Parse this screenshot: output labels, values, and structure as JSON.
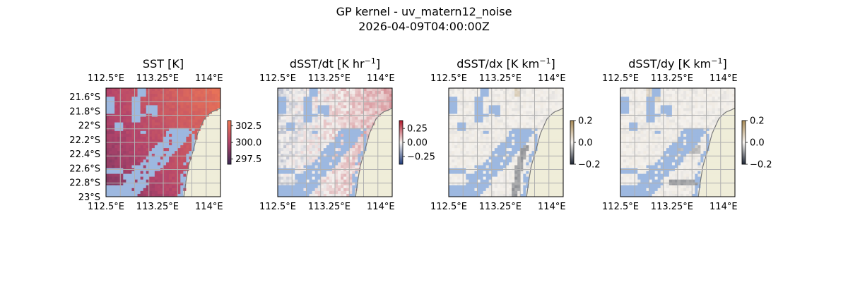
{
  "figure": {
    "title_line1": "GP kernel - uv_matern12_noise",
    "title_line2": "2026-04-09T04:00:00Z"
  },
  "colors": {
    "land": "#efedd9",
    "mask": "#9db8e0",
    "gridline": "#b0b0b0",
    "coast": "#7a7a7a",
    "sst_low": "#3b2a55",
    "sst_mid": "#b4456b",
    "sst_high": "#f07a55",
    "div_low": "#1f3a7a",
    "div_mid": "#f4f1ee",
    "div_high": "#b2182b",
    "grad_low": "#1c2433",
    "grad_mid": "#f5f2ee",
    "grad_high": "#a88a55"
  },
  "chart_data": [
    {
      "type": "heatmap",
      "title": "SST [K]",
      "title_sup": "",
      "title_after": "",
      "x_tick_labels": [
        "112.5°E",
        "113.25°E",
        "114°E"
      ],
      "y_tick_labels": [
        "21.6°S",
        "21.8°S",
        "22°S",
        "22.2°S",
        "22.4°S",
        "22.6°S",
        "22.8°S",
        "23°S"
      ],
      "show_y_labels": true,
      "colorbar": {
        "ticks": [
          "302.5",
          "300.0",
          "297.5"
        ],
        "range": [
          297.0,
          303.5
        ],
        "colormap": "sst"
      },
      "field": "sst",
      "xlim": [
        112.5,
        114.1
      ],
      "ylim": [
        -23.0,
        -21.5
      ]
    },
    {
      "type": "heatmap",
      "title": "dSST/dt [K hr",
      "title_sup": "−1",
      "title_after": "]",
      "x_tick_labels": [
        "112.5°E",
        "113.25°E",
        "114°E"
      ],
      "y_tick_labels": [],
      "show_y_labels": false,
      "colorbar": {
        "ticks": [
          "0.25",
          "0.00",
          "−0.25"
        ],
        "range": [
          -0.4,
          0.4
        ],
        "colormap": "diverging"
      },
      "field": "dt",
      "xlim": [
        112.5,
        114.1
      ],
      "ylim": [
        -23.0,
        -21.5
      ]
    },
    {
      "type": "heatmap",
      "title": "dSST/dx [K km",
      "title_sup": "−1",
      "title_after": "]",
      "x_tick_labels": [
        "112.5°E",
        "113.25°E",
        "114°E"
      ],
      "y_tick_labels": [],
      "show_y_labels": false,
      "colorbar": {
        "ticks": [
          "0.2",
          "0.0",
          "−0.2"
        ],
        "range": [
          -0.2,
          0.2
        ],
        "colormap": "gradient"
      },
      "field": "dx",
      "xlim": [
        112.5,
        114.1
      ],
      "ylim": [
        -23.0,
        -21.5
      ]
    },
    {
      "type": "heatmap",
      "title": "dSST/dy [K km",
      "title_sup": "−1",
      "title_after": "]",
      "x_tick_labels": [
        "112.5°E",
        "113.25°E",
        "114°E"
      ],
      "y_tick_labels": [],
      "show_y_labels": false,
      "colorbar": {
        "ticks": [
          "0.2",
          "0.0",
          "−0.2"
        ],
        "range": [
          -0.2,
          0.2
        ],
        "colormap": "gradient"
      },
      "field": "dy",
      "xlim": [
        112.5,
        114.1
      ],
      "ylim": [
        -23.0,
        -21.5
      ]
    }
  ]
}
